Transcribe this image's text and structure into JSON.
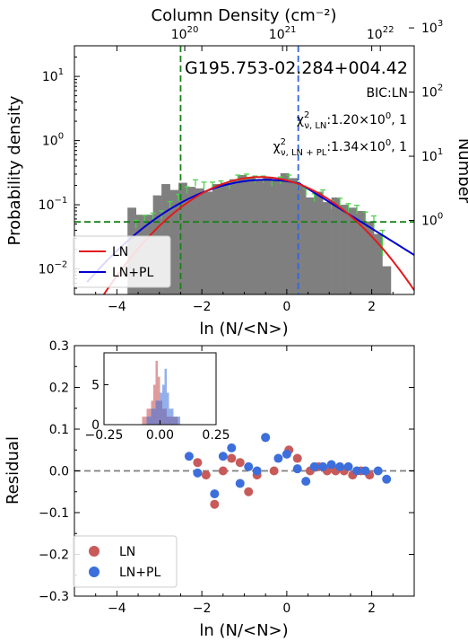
{
  "chart_data": [
    {
      "type": "histogram",
      "title": "G195.753-02.284+004.42",
      "top_axis_label": "Column Density (cm⁻²)",
      "top_ticks": [
        {
          "value": 1e+20,
          "label": "10",
          "exp": "20"
        },
        {
          "value": 1e+21,
          "label": "10",
          "exp": "21"
        },
        {
          "value": 1e+22,
          "label": "10",
          "exp": "22"
        }
      ],
      "xlabel": "ln (N/<N>)",
      "ylabel": "Probability density",
      "ylabel_right": "Number",
      "xlim": [
        -5.0,
        3.0
      ],
      "ylim": [
        0.004,
        30
      ],
      "yscale": "log",
      "x_ticks": [
        -4,
        -2,
        0,
        2
      ],
      "x_tick_labels": [
        "−4",
        "−2",
        "0",
        "2"
      ],
      "y_ticks": [
        {
          "value": 0.01,
          "label": "10",
          "exp": "−2"
        },
        {
          "value": 0.1,
          "label": "10",
          "exp": "−1"
        },
        {
          "value": 1,
          "label": "10",
          "exp": "0"
        },
        {
          "value": 10,
          "label": "10",
          "exp": "1"
        }
      ],
      "right_ticks": [
        {
          "value": 0.057,
          "label": "10",
          "exp": "0"
        },
        {
          "value": 0.57,
          "label": "10",
          "exp": "1"
        },
        {
          "value": 5.7,
          "label": "10",
          "exp": "2"
        },
        {
          "value": 57,
          "label": "10",
          "exp": "3"
        }
      ],
      "bic_text": "BIC:LN",
      "chi_ln_sub": "ν, LN",
      "chi_ln_value": ":1.20×10",
      "chi_ln_exp": "0",
      "chi_ln_tail": ", 1",
      "chi_pl_sub": "ν, LN + PL",
      "chi_pl_value": ":1.34×10",
      "chi_pl_exp": "0",
      "chi_pl_tail": ", 1",
      "chi_symbol": "χ",
      "chi_sup": "2",
      "bins": [
        {
          "x0": -3.75,
          "x1": -3.55,
          "y": 0.09
        },
        {
          "x0": -3.55,
          "x1": -3.35,
          "y": 0.07
        },
        {
          "x0": -3.35,
          "x1": -3.15,
          "y": 0.07
        },
        {
          "x0": -3.15,
          "x1": -2.95,
          "y": 0.14
        },
        {
          "x0": -2.95,
          "x1": -2.75,
          "y": 0.21
        },
        {
          "x0": -2.75,
          "x1": -2.55,
          "y": 0.17
        },
        {
          "x0": -2.55,
          "x1": -2.35,
          "y": 0.22
        },
        {
          "x0": -2.35,
          "x1": -2.15,
          "y": 0.19
        },
        {
          "x0": -2.15,
          "x1": -1.95,
          "y": 0.18
        },
        {
          "x0": -1.95,
          "x1": -1.75,
          "y": 0.16
        },
        {
          "x0": -1.75,
          "x1": -1.55,
          "y": 0.21
        },
        {
          "x0": -1.55,
          "x1": -1.35,
          "y": 0.22
        },
        {
          "x0": -1.35,
          "x1": -1.15,
          "y": 0.25
        },
        {
          "x0": -1.15,
          "x1": -0.95,
          "y": 0.29
        },
        {
          "x0": -0.95,
          "x1": -0.75,
          "y": 0.26
        },
        {
          "x0": -0.75,
          "x1": -0.55,
          "y": 0.25
        },
        {
          "x0": -0.55,
          "x1": -0.35,
          "y": 0.27
        },
        {
          "x0": -0.35,
          "x1": -0.15,
          "y": 0.24
        },
        {
          "x0": -0.15,
          "x1": 0.05,
          "y": 0.31
        },
        {
          "x0": 0.05,
          "x1": 0.25,
          "y": 0.26
        },
        {
          "x0": 0.25,
          "x1": 0.45,
          "y": 0.2
        },
        {
          "x0": 0.45,
          "x1": 0.65,
          "y": 0.13
        },
        {
          "x0": 0.65,
          "x1": 0.85,
          "y": 0.16
        },
        {
          "x0": 0.85,
          "x1": 1.05,
          "y": 0.11
        },
        {
          "x0": 1.05,
          "x1": 1.25,
          "y": 0.13
        },
        {
          "x0": 1.25,
          "x1": 1.45,
          "y": 0.1
        },
        {
          "x0": 1.45,
          "x1": 1.65,
          "y": 0.09
        },
        {
          "x0": 1.65,
          "x1": 1.85,
          "y": 0.08
        },
        {
          "x0": 1.85,
          "x1": 2.05,
          "y": 0.055
        },
        {
          "x0": 2.05,
          "x1": 2.25,
          "y": 0.035
        },
        {
          "x0": 2.25,
          "x1": 2.45,
          "y": 0.011
        }
      ],
      "errorbars": [
        {
          "x": -3.55,
          "y": 0.05,
          "err": 0.007
        },
        {
          "x": -3.35,
          "y": 0.06,
          "err": 0.008
        },
        {
          "x": -3.15,
          "y": 0.065,
          "err": 0.009
        },
        {
          "x": -2.95,
          "y": 0.07,
          "err": 0.01
        },
        {
          "x": -2.75,
          "y": 0.1,
          "err": 0.012
        },
        {
          "x": -2.55,
          "y": 0.13,
          "err": 0.015
        },
        {
          "x": -2.35,
          "y": 0.17,
          "err": 0.02
        },
        {
          "x": -2.15,
          "y": 0.22,
          "err": 0.025
        },
        {
          "x": -1.95,
          "y": 0.2,
          "err": 0.025
        },
        {
          "x": -1.75,
          "y": 0.2,
          "err": 0.025
        },
        {
          "x": -1.55,
          "y": 0.21,
          "err": 0.025
        },
        {
          "x": -1.35,
          "y": 0.2,
          "err": 0.025
        },
        {
          "x": -1.15,
          "y": 0.26,
          "err": 0.03
        },
        {
          "x": -0.95,
          "y": 0.27,
          "err": 0.03
        },
        {
          "x": -0.75,
          "y": 0.25,
          "err": 0.03
        },
        {
          "x": -0.55,
          "y": 0.25,
          "err": 0.03
        },
        {
          "x": -0.35,
          "y": 0.22,
          "err": 0.025
        },
        {
          "x": -0.15,
          "y": 0.24,
          "err": 0.03
        },
        {
          "x": 0.05,
          "y": 0.26,
          "err": 0.03
        },
        {
          "x": 0.25,
          "y": 0.2,
          "err": 0.025
        },
        {
          "x": 0.45,
          "y": 0.16,
          "err": 0.02
        },
        {
          "x": 0.65,
          "y": 0.13,
          "err": 0.018
        },
        {
          "x": 0.85,
          "y": 0.15,
          "err": 0.02
        },
        {
          "x": 1.05,
          "y": 0.1,
          "err": 0.015
        },
        {
          "x": 1.25,
          "y": 0.11,
          "err": 0.016
        },
        {
          "x": 1.45,
          "y": 0.09,
          "err": 0.014
        },
        {
          "x": 1.65,
          "y": 0.085,
          "err": 0.013
        },
        {
          "x": 1.85,
          "y": 0.065,
          "err": 0.012
        },
        {
          "x": 2.05,
          "y": 0.055,
          "err": 0.012
        },
        {
          "x": 2.25,
          "y": 0.028,
          "err": 0.012
        }
      ],
      "ln_fit": {
        "amplitude": 0.27,
        "mu": -0.62,
        "sigma": 1.27,
        "x_range": [
          -4.7,
          3.0
        ]
      },
      "lnpl_fit": {
        "amplitude": 0.245,
        "mu": -0.5,
        "sigma": 1.55,
        "x_range": [
          -4.7,
          3.0
        ],
        "transition": 0.3,
        "slope": -0.95
      },
      "vline_green": -2.5,
      "vline_blue": 0.27,
      "hline_green": 0.054,
      "legend": [
        {
          "name": "LN",
          "color": "#e31a1c"
        },
        {
          "name": "LN+PL",
          "color": "#0000d0"
        }
      ],
      "legend_position": "lower-left",
      "colors": {
        "bar": "#7f7f7f",
        "errorbar": "#4fcf4f",
        "green_line": "#1a801a",
        "blue_line": "#3366dd"
      }
    },
    {
      "type": "scatter",
      "xlabel": "ln (N/<N>)",
      "ylabel": "Residual",
      "xlim": [
        -5.0,
        3.0
      ],
      "ylim": [
        -0.3,
        0.3
      ],
      "x_ticks": [
        -4,
        -2,
        0,
        2
      ],
      "x_tick_labels": [
        "−4",
        "−2",
        "0",
        "2"
      ],
      "y_ticks": [
        -0.3,
        -0.2,
        -0.1,
        0.0,
        0.1,
        0.2,
        0.3
      ],
      "y_tick_labels": [
        "−0.3",
        "−0.2",
        "−0.1",
        "0.0",
        "0.1",
        "0.2",
        "0.3"
      ],
      "zero_line": 0.0,
      "legend": [
        {
          "name": "LN",
          "color": "#c85a5a"
        },
        {
          "name": "LN+PL",
          "color": "#3c6fdc"
        }
      ],
      "legend_position": "lower-left",
      "series": [
        {
          "name": "LN",
          "color": "#c85a5a",
          "points": [
            [
              -2.1,
              0.02
            ],
            [
              -1.9,
              -0.01
            ],
            [
              -1.7,
              -0.08
            ],
            [
              -1.5,
              0.0
            ],
            [
              -1.3,
              0.03
            ],
            [
              -1.1,
              0.02
            ],
            [
              -0.9,
              -0.05
            ],
            [
              -0.7,
              -0.01
            ],
            [
              -0.5,
              0.08
            ],
            [
              -0.3,
              0.0
            ],
            [
              0.05,
              0.05
            ],
            [
              0.25,
              0.03
            ],
            [
              0.55,
              0.0
            ],
            [
              0.75,
              0.01
            ],
            [
              0.95,
              0.0
            ],
            [
              1.15,
              0.0
            ],
            [
              1.35,
              0.0
            ],
            [
              1.55,
              -0.01
            ],
            [
              1.75,
              0.0
            ],
            [
              1.95,
              -0.01
            ]
          ]
        },
        {
          "name": "LN+PL",
          "color": "#3c6fdc",
          "points": [
            [
              -2.3,
              0.035
            ],
            [
              -2.1,
              -0.005
            ],
            [
              -1.7,
              -0.055
            ],
            [
              -1.5,
              0.035
            ],
            [
              -1.3,
              0.055
            ],
            [
              -1.1,
              -0.03
            ],
            [
              -0.9,
              0.01
            ],
            [
              -0.7,
              0.0
            ],
            [
              -0.5,
              0.08
            ],
            [
              -0.2,
              0.03
            ],
            [
              0.0,
              0.04
            ],
            [
              0.25,
              0.005
            ],
            [
              0.45,
              -0.025
            ],
            [
              0.65,
              0.01
            ],
            [
              0.85,
              0.01
            ],
            [
              1.05,
              0.015
            ],
            [
              1.25,
              0.01
            ],
            [
              1.45,
              0.01
            ],
            [
              1.65,
              0.0
            ],
            [
              1.85,
              0.0
            ],
            [
              2.35,
              -0.02
            ],
            [
              2.15,
              0.0
            ]
          ]
        }
      ],
      "inset": {
        "xlim": [
          -0.25,
          0.25
        ],
        "ylim": [
          0,
          9
        ],
        "x_ticks": [
          -0.25,
          0.0,
          0.25
        ],
        "x_tick_labels": [
          "−0.25",
          "0.00",
          "0.25"
        ],
        "y_ticks": [
          0,
          5
        ],
        "y_tick_labels": [
          "0",
          "5"
        ],
        "ln_hist": [
          {
            "x0": -0.08,
            "x1": -0.06,
            "count": 1
          },
          {
            "x0": -0.06,
            "x1": -0.04,
            "count": 2
          },
          {
            "x0": -0.04,
            "x1": -0.03,
            "count": 3
          },
          {
            "x0": -0.03,
            "x1": -0.02,
            "count": 5
          },
          {
            "x0": -0.02,
            "x1": -0.01,
            "count": 8
          },
          {
            "x0": -0.01,
            "x1": 0.0,
            "count": 6
          },
          {
            "x0": 0.0,
            "x1": 0.01,
            "count": 3
          },
          {
            "x0": 0.01,
            "x1": 0.03,
            "count": 2
          },
          {
            "x0": 0.03,
            "x1": 0.05,
            "count": 1
          },
          {
            "x0": 0.05,
            "x1": 0.08,
            "count": 1
          }
        ],
        "lnpl_hist": [
          {
            "x0": -0.06,
            "x1": -0.04,
            "count": 1
          },
          {
            "x0": -0.04,
            "x1": -0.02,
            "count": 2
          },
          {
            "x0": -0.02,
            "x1": 0.0,
            "count": 3
          },
          {
            "x0": 0.0,
            "x1": 0.01,
            "count": 4
          },
          {
            "x0": 0.01,
            "x1": 0.02,
            "count": 5
          },
          {
            "x0": 0.02,
            "x1": 0.03,
            "count": 7
          },
          {
            "x0": 0.03,
            "x1": 0.04,
            "count": 4
          },
          {
            "x0": 0.04,
            "x1": 0.06,
            "count": 2
          },
          {
            "x0": 0.06,
            "x1": 0.09,
            "count": 1
          }
        ]
      }
    }
  ]
}
